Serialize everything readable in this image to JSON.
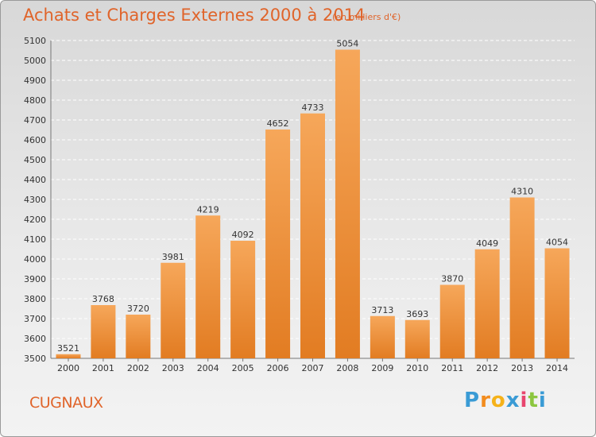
{
  "title": "Achats et Charges Externes 2000 à 2014",
  "subtitle": "(en milliers d'€)",
  "commune": "CUGNAUX",
  "logo": {
    "letters": [
      "P",
      "r",
      "o",
      "x",
      "i",
      "t",
      "i"
    ],
    "colors": [
      "#3a9bd5",
      "#f28c1e",
      "#f5b21a",
      "#3a9bd5",
      "#e8456e",
      "#8cc63f",
      "#3a9bd5"
    ]
  },
  "colors": {
    "bar_light": "#f6a75a",
    "bar_dark": "#e27c22",
    "accent": "#e0642a"
  },
  "chart_data": {
    "type": "bar",
    "title": "Achats et Charges Externes 2000 à 2014",
    "xlabel": "",
    "ylabel": "",
    "categories": [
      "2000",
      "2001",
      "2002",
      "2003",
      "2004",
      "2005",
      "2006",
      "2007",
      "2008",
      "2009",
      "2010",
      "2011",
      "2012",
      "2013",
      "2014"
    ],
    "values": [
      3521,
      3768,
      3720,
      3981,
      4219,
      4092,
      4652,
      4733,
      5054,
      3713,
      3693,
      3870,
      4049,
      4310,
      4054
    ],
    "ylim": [
      3500,
      5100
    ],
    "yticks": [
      3500,
      3600,
      3700,
      3800,
      3900,
      4000,
      4100,
      4200,
      4300,
      4400,
      4500,
      4600,
      4700,
      4800,
      4900,
      5000,
      5100
    ],
    "grid": true
  }
}
